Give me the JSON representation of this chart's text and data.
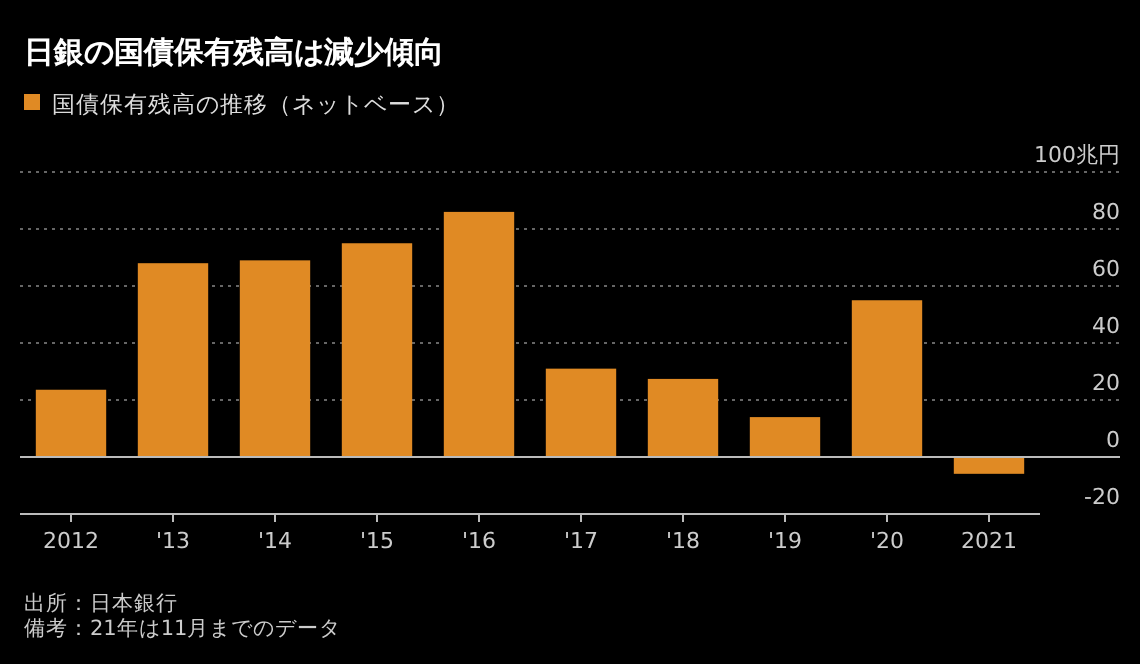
{
  "chart_data": {
    "type": "bar",
    "title": "日銀の国債保有残高は減少傾向",
    "categories": [
      "2012",
      "'13",
      "'14",
      "'15",
      "'16",
      "'17",
      "'18",
      "'19",
      "'20",
      "2021"
    ],
    "series": [
      {
        "name": "国債保有残高の推移（ネットベース）",
        "color": "#e08a24",
        "values": [
          23.6,
          68,
          69,
          75,
          86,
          31,
          27.4,
          14,
          55,
          -5.9
        ]
      }
    ],
    "ylim": [
      -20,
      100
    ],
    "yticks": [
      -20,
      0,
      20,
      40,
      60,
      80,
      {
        "value": 100,
        "label": "100兆円"
      }
    ],
    "grid": "y",
    "legend": "top left",
    "annotations": [
      "出所：日本銀行",
      "備考：21年は11月までのデータ"
    ]
  }
}
